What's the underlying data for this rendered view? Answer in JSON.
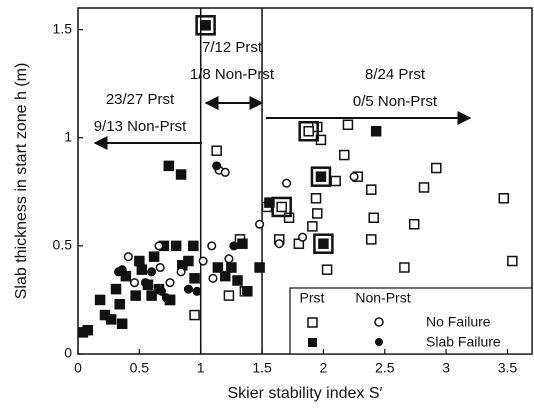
{
  "chart_data": {
    "type": "scatter",
    "xlabel": "Skier stability index S′",
    "ylabel": "Slab thickness in start zone h (m)",
    "xlim": [
      0,
      3.7
    ],
    "ylim": [
      0,
      1.6
    ],
    "xticks": [
      0,
      0.5,
      1,
      1.5,
      2,
      2.5,
      3,
      3.5
    ],
    "yticks": [
      0,
      0.5,
      1,
      1.5
    ],
    "dividers": [
      1,
      1.5
    ],
    "annotations": [
      "7/12 Prst",
      "1/8 Non-Prst",
      "23/27 Prst",
      "9/13 Non-Prst",
      "8/24 Prst",
      "0/5 Non-Prst"
    ],
    "legend": {
      "columns": [
        "Prst",
        "Non-Prst"
      ],
      "rows": [
        "No Failure",
        "Slab Failure"
      ]
    },
    "color": "#111111",
    "series": [
      {
        "marker": "square",
        "filled": false,
        "boxed": false,
        "x": [
          0.75,
          0.95,
          1.13,
          1.23,
          1.32,
          1.36,
          1.54,
          1.64,
          1.72,
          1.8,
          1.91,
          1.95,
          1.98,
          1.94,
          1.95,
          2.03,
          2.1,
          2.17,
          2.2,
          2.28,
          2.39,
          2.41,
          2.39,
          2.66,
          2.74,
          2.82,
          2.92,
          3.47,
          3.54
        ],
        "y": [
          0.25,
          0.18,
          0.94,
          0.27,
          0.53,
          0.29,
          0.68,
          0.53,
          0.63,
          0.51,
          0.59,
          1.05,
          0.99,
          0.72,
          0.65,
          0.39,
          0.8,
          0.92,
          1.06,
          0.82,
          0.76,
          0.63,
          0.53,
          0.4,
          0.6,
          0.77,
          0.86,
          0.72,
          0.43
        ]
      },
      {
        "marker": "square",
        "filled": false,
        "boxed": true,
        "x": [
          1.88,
          1.66
        ],
        "y": [
          1.03,
          0.68
        ]
      },
      {
        "marker": "square",
        "filled": true,
        "boxed": false,
        "x": [
          0.04,
          0.08,
          0.18,
          0.22,
          0.27,
          0.31,
          0.34,
          0.36,
          0.39,
          0.47,
          0.5,
          0.52,
          0.57,
          0.6,
          0.62,
          0.66,
          0.7,
          0.74,
          0.75,
          0.8,
          0.84,
          0.85,
          0.9,
          0.94,
          0.95,
          1.14,
          1.2,
          1.25,
          1.3,
          1.34,
          1.38,
          1.48,
          1.56,
          2.43
        ],
        "y": [
          0.1,
          0.11,
          0.25,
          0.18,
          0.16,
          0.3,
          0.23,
          0.14,
          0.36,
          0.27,
          0.43,
          0.39,
          0.32,
          0.27,
          0.45,
          0.3,
          0.5,
          0.87,
          0.25,
          0.5,
          0.83,
          0.41,
          0.43,
          0.5,
          0.35,
          0.4,
          0.36,
          0.4,
          0.34,
          0.51,
          0.29,
          0.4,
          0.7,
          1.03
        ]
      },
      {
        "marker": "square",
        "filled": true,
        "boxed": true,
        "x": [
          1.04,
          1.98,
          2.0
        ],
        "y": [
          1.52,
          0.82,
          0.51
        ]
      },
      {
        "marker": "circle",
        "filled": false,
        "boxed": false,
        "x": [
          0.41,
          0.46,
          0.66,
          0.67,
          0.75,
          0.84,
          1.02,
          1.09,
          1.15,
          1.2,
          1.1,
          1.23,
          1.48,
          1.64,
          1.7,
          1.83,
          2.25
        ],
        "y": [
          0.45,
          0.33,
          0.5,
          0.4,
          0.33,
          0.38,
          0.43,
          0.5,
          0.85,
          0.84,
          0.35,
          0.44,
          0.6,
          0.51,
          0.79,
          0.54,
          0.82
        ]
      },
      {
        "marker": "circle",
        "filled": true,
        "boxed": false,
        "x": [
          0.33,
          0.36,
          0.55,
          0.6,
          0.68,
          0.72,
          0.9,
          0.97,
          1.13,
          1.27
        ],
        "y": [
          0.38,
          0.39,
          0.33,
          0.38,
          0.29,
          0.26,
          0.3,
          0.29,
          0.87,
          0.5
        ]
      }
    ]
  }
}
